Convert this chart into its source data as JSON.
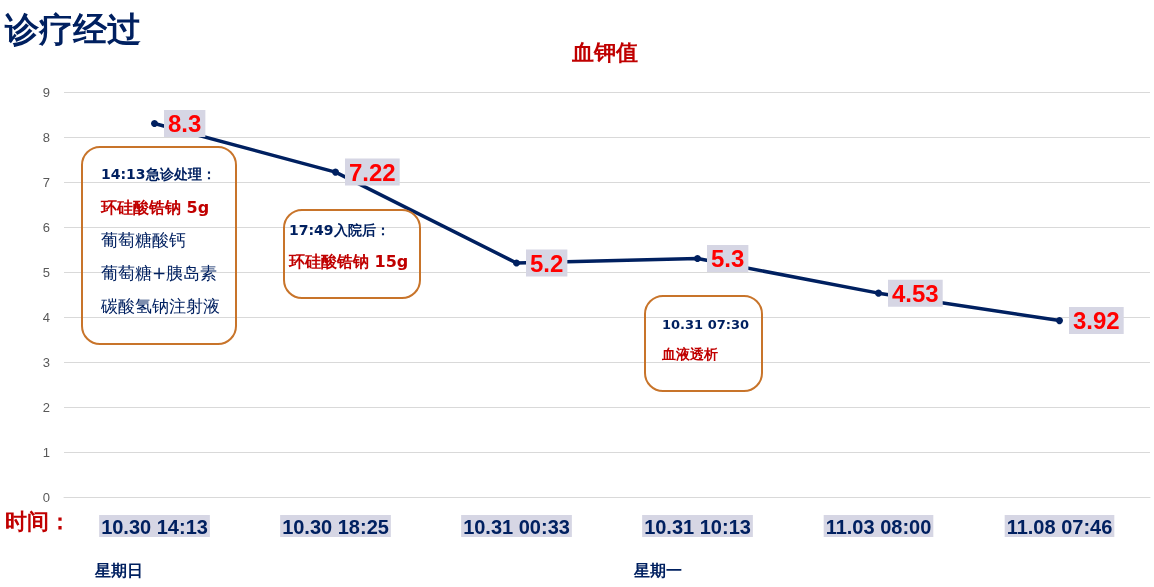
{
  "chart_data": {
    "type": "line",
    "title": "血钾值",
    "categories": [
      "10.30 14:13",
      "10.30 18:25",
      "10.31 00:33",
      "10.31 10:13",
      "11.03 08:00",
      "11.08 07:46"
    ],
    "values": [
      8.3,
      7.22,
      5.2,
      5.3,
      4.53,
      3.92
    ],
    "color": "#002060",
    "ylim": [
      0,
      9
    ],
    "yticks": [
      0,
      1,
      2,
      3,
      4,
      5,
      6,
      7,
      8,
      9
    ],
    "grid": "y",
    "marker": "circle",
    "line_style": "solid",
    "data_labels": true,
    "annotations": [
      "诊疗经过",
      "时间：",
      "星期日",
      "星期一",
      "14:13急诊处理：",
      "环硅酸锆钠 5g",
      "葡萄糖酸钙",
      "葡萄糖+胰岛素",
      "碳酸氢钠注射液",
      "17:49入院后：",
      "环硅酸锆钠 15g",
      "10.31 07:30",
      "血液透析"
    ]
  }
}
